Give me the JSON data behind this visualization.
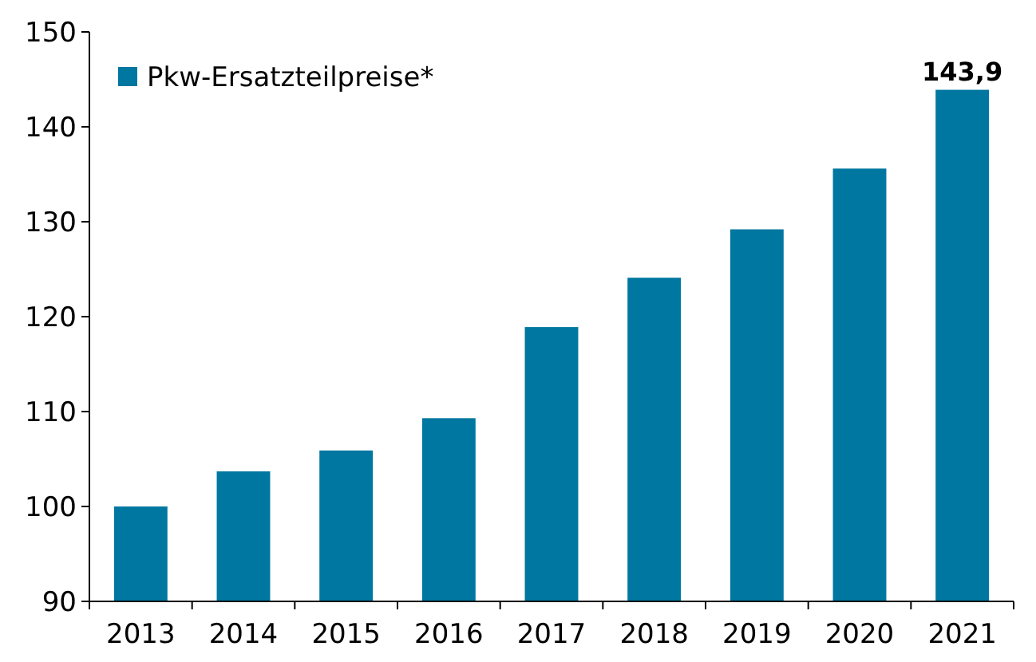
{
  "chart_data": {
    "type": "bar",
    "categories": [
      "2013",
      "2014",
      "2015",
      "2016",
      "2017",
      "2018",
      "2019",
      "2020",
      "2021"
    ],
    "series": [
      {
        "name": "Pkw-Ersatzteilpreise*",
        "color": "#0077a0",
        "values": [
          100,
          103.7,
          105.9,
          109.3,
          118.9,
          124.1,
          129.2,
          135.6,
          143.9
        ],
        "value_labels": [
          null,
          null,
          null,
          null,
          null,
          null,
          null,
          null,
          "143,9"
        ]
      }
    ],
    "ylim": [
      90,
      150
    ],
    "yticks": [
      90,
      100,
      110,
      120,
      130,
      140,
      150
    ],
    "legend": "top left"
  }
}
